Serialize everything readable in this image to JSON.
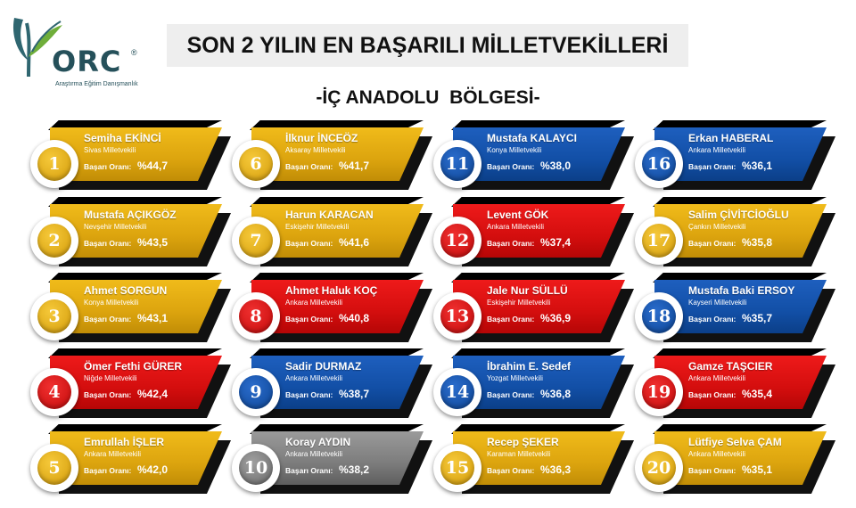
{
  "logo": {
    "text": "ORC",
    "reg": "®",
    "tagline": "Araştırma Eğitim Danışmanlık"
  },
  "title": "SON 2 YILIN EN BAŞARILI MİLLETVEKİLLERİ",
  "subtitle": "-İÇ ANADOLU  BÖLGESİ-",
  "rate_label": "Başarı Oranı:",
  "colors": {
    "gold": "#E0A90F",
    "red": "#D81010",
    "blue": "#1452AA",
    "gray": "#7C7C7C"
  },
  "deputies": [
    {
      "rank": "1",
      "name": "Semiha EKİNCİ",
      "province": "Sivas Milletvekili",
      "rate": "%44,7",
      "color": "gold"
    },
    {
      "rank": "2",
      "name": "Mustafa AÇIKGÖZ",
      "province": "Nevşehir Milletvekili",
      "rate": "%43,5",
      "color": "gold"
    },
    {
      "rank": "3",
      "name": "Ahmet SORGUN",
      "province": "Konya Milletvekili",
      "rate": "%43,1",
      "color": "gold"
    },
    {
      "rank": "4",
      "name": "Ömer Fethi GÜRER",
      "province": "Niğde Milletvekili",
      "rate": "%42,4",
      "color": "red"
    },
    {
      "rank": "5",
      "name": "Emrullah İŞLER",
      "province": "Ankara Milletvekili",
      "rate": "%42,0",
      "color": "gold"
    },
    {
      "rank": "6",
      "name": "İlknur İNCEÖZ",
      "province": "Aksaray Milletvekili",
      "rate": "%41,7",
      "color": "gold"
    },
    {
      "rank": "7",
      "name": "Harun KARACAN",
      "province": "Eskişehir Milletvekili",
      "rate": "%41,6",
      "color": "gold"
    },
    {
      "rank": "8",
      "name": "Ahmet Haluk KOÇ",
      "province": "Ankara Milletvekili",
      "rate": "%40,8",
      "color": "red"
    },
    {
      "rank": "9",
      "name": "Sadir DURMAZ",
      "province": "Ankara  Milletvekili",
      "rate": "%38,7",
      "color": "blue"
    },
    {
      "rank": "10",
      "name": "Koray AYDIN",
      "province": "Ankara Milletvekili",
      "rate": "%38,2",
      "color": "gray"
    },
    {
      "rank": "11",
      "name": "Mustafa KALAYCI",
      "province": "Konya Milletvekili",
      "rate": "%38,0",
      "color": "blue"
    },
    {
      "rank": "12",
      "name": "Levent GÖK",
      "province": "Ankara Milletvekili",
      "rate": "%37,4",
      "color": "red"
    },
    {
      "rank": "13",
      "name": "Jale Nur SÜLLÜ",
      "province": "Eskişehir Milletvekili",
      "rate": "%36,9",
      "color": "red"
    },
    {
      "rank": "14",
      "name": "İbrahim E. Sedef",
      "province": "Yozgat Milletvekili",
      "rate": "%36,8",
      "color": "blue"
    },
    {
      "rank": "15",
      "name": "Recep ŞEKER",
      "province": "Karaman Milletvekili",
      "rate": "%36,3",
      "color": "gold"
    },
    {
      "rank": "16",
      "name": "Erkan HABERAL",
      "province": "Ankara Milletvekili",
      "rate": "%36,1",
      "color": "blue"
    },
    {
      "rank": "17",
      "name": "Salim ÇİVİTCİOĞLU",
      "province": "Çankırı Milletvekili",
      "rate": "%35,8",
      "color": "gold"
    },
    {
      "rank": "18",
      "name": "Mustafa Baki ERSOY",
      "province": "Kayseri Milletvekili",
      "rate": "%35,7",
      "color": "blue"
    },
    {
      "rank": "19",
      "name": "Gamze TAŞCIER",
      "province": "Ankara  Milletvekili",
      "rate": "%35,4",
      "color": "red"
    },
    {
      "rank": "20",
      "name": "Lütfiye Selva ÇAM",
      "province": "Ankara Milletvekili",
      "rate": "%35,1",
      "color": "gold"
    }
  ]
}
